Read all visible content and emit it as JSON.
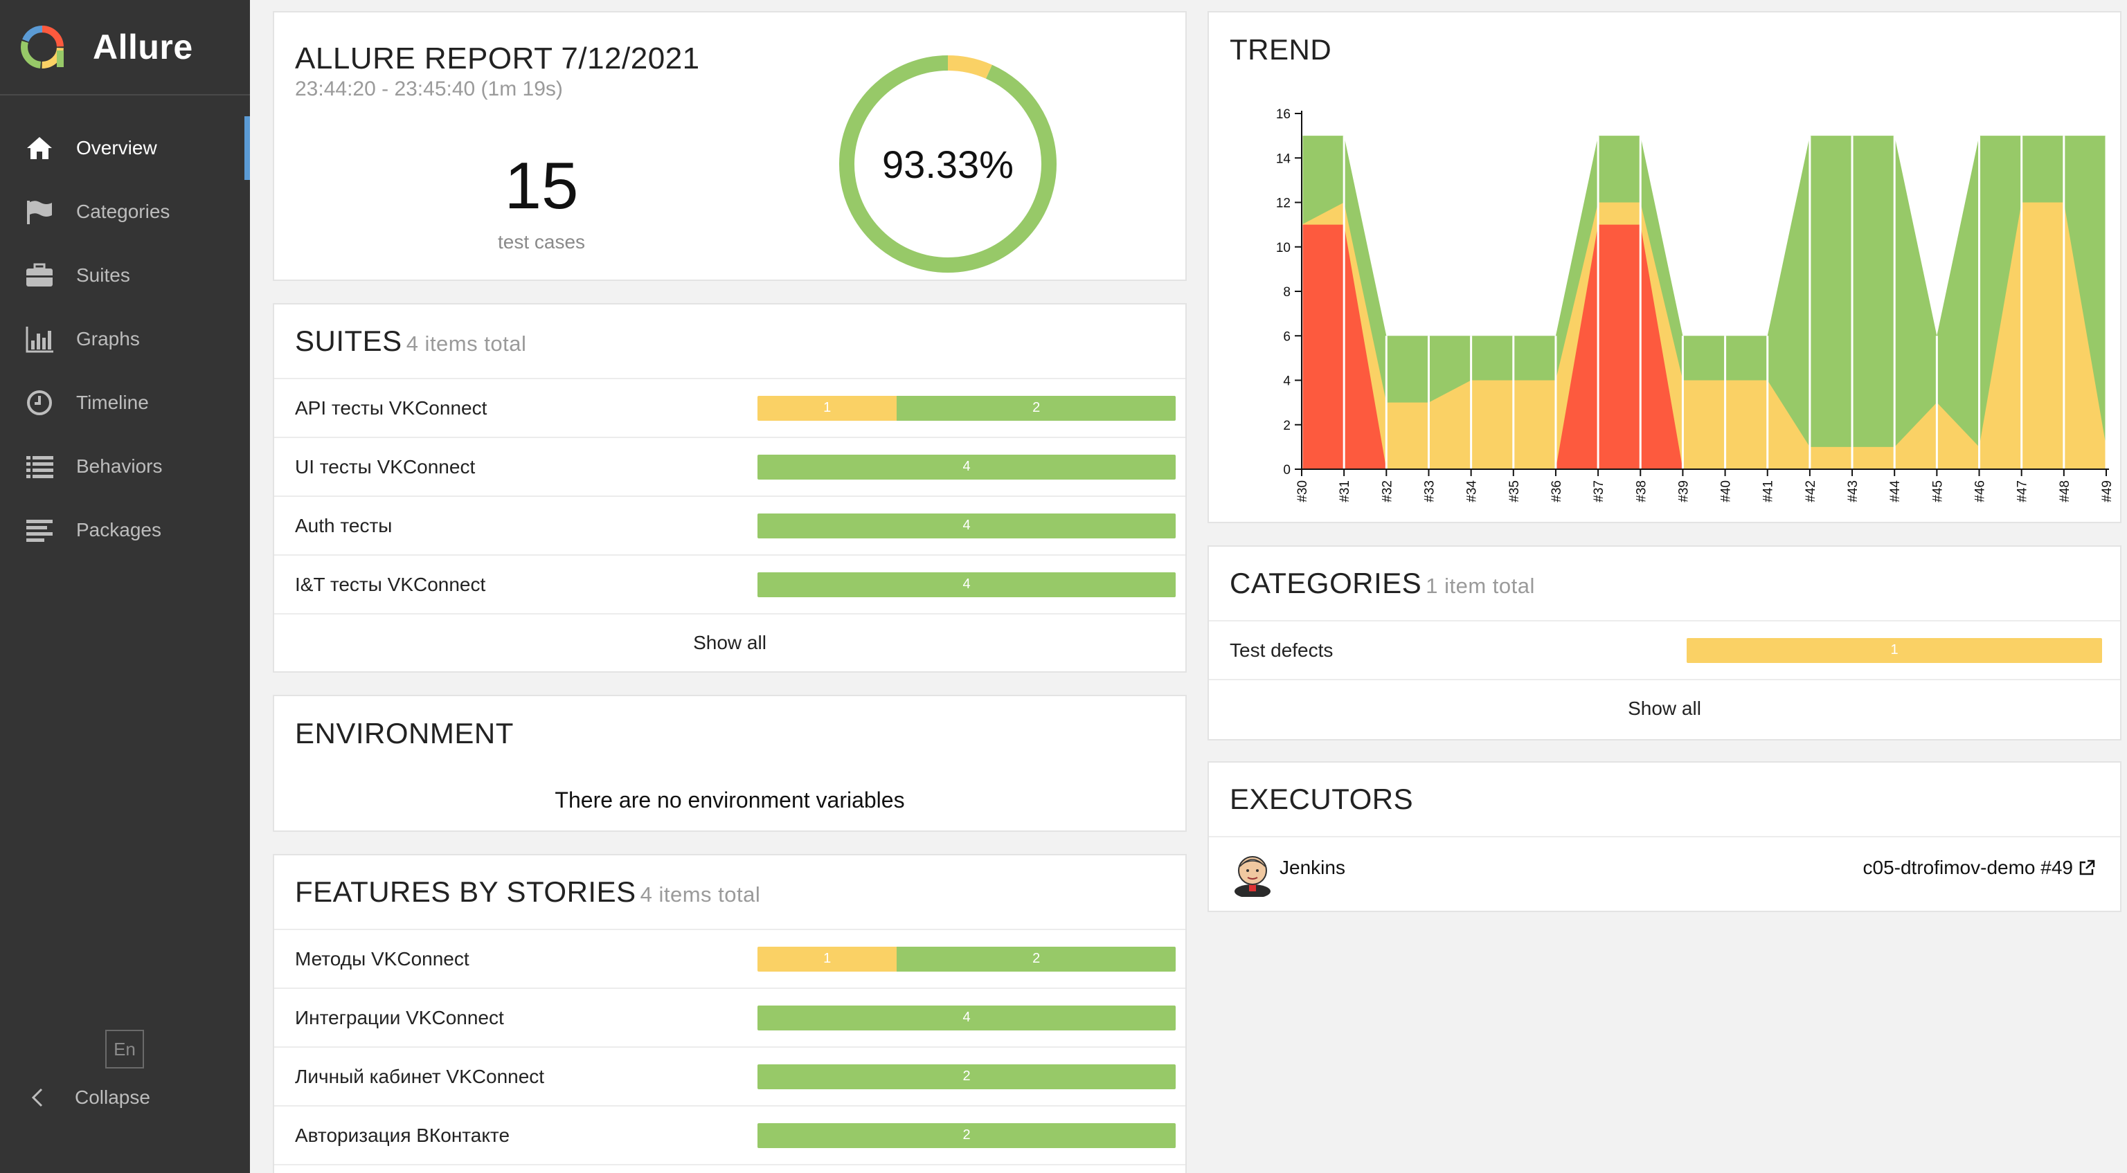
{
  "app": {
    "name": "Allure"
  },
  "nav": {
    "items": [
      {
        "label": "Overview",
        "icon": "home-icon"
      },
      {
        "label": "Categories",
        "icon": "flag-icon"
      },
      {
        "label": "Suites",
        "icon": "briefcase-icon"
      },
      {
        "label": "Graphs",
        "icon": "bar-chart-icon"
      },
      {
        "label": "Timeline",
        "icon": "clock-icon"
      },
      {
        "label": "Behaviors",
        "icon": "list-icon"
      },
      {
        "label": "Packages",
        "icon": "align-left-icon"
      }
    ],
    "language": "En",
    "collapse": "Collapse"
  },
  "summary": {
    "title": "ALLURE REPORT 7/12/2021",
    "time": "23:44:20 - 23:45:40 (1m 19s)",
    "count": "15",
    "count_label": "test cases",
    "percent": "93.33%",
    "passed_fraction": 0.9333,
    "broken_fraction": 0.0667
  },
  "colors": {
    "passed": "#97c968",
    "broken": "#fad165",
    "failed": "#fd5a3e",
    "accent": "#5b9bd5"
  },
  "suites": {
    "title": "SUITES",
    "subtitle": "4 items total",
    "items": [
      {
        "name": "API тесты VKConnect",
        "broken": "1",
        "passed": "2"
      },
      {
        "name": "UI тесты VKConnect",
        "broken": "",
        "passed": "4"
      },
      {
        "name": "Auth тесты",
        "broken": "",
        "passed": "4"
      },
      {
        "name": "I&T тесты VKConnect",
        "broken": "",
        "passed": "4"
      }
    ],
    "show_all": "Show all"
  },
  "environment": {
    "title": "ENVIRONMENT",
    "message": "There are no environment variables"
  },
  "features": {
    "title": "FEATURES BY STORIES",
    "subtitle": "4 items total",
    "items": [
      {
        "name": "Методы VKConnect",
        "broken": "1",
        "passed": "2"
      },
      {
        "name": "Интеграции VKConnect",
        "broken": "",
        "passed": "4"
      },
      {
        "name": "Личный кабинет VKConnect",
        "broken": "",
        "passed": "2"
      },
      {
        "name": "Авторизация ВКонтакте",
        "broken": "",
        "passed": "2"
      }
    ]
  },
  "trend": {
    "title": "TREND"
  },
  "categories": {
    "title": "CATEGORIES",
    "subtitle": "1 item total",
    "items": [
      {
        "name": "Test defects",
        "count": "1"
      }
    ],
    "show_all": "Show all"
  },
  "executors": {
    "title": "EXECUTORS",
    "items": [
      {
        "name": "Jenkins",
        "build": "c05-dtrofimov-demo #49"
      }
    ]
  },
  "chart_data": {
    "type": "area",
    "categories": [
      "#30",
      "#31",
      "#32",
      "#33",
      "#34",
      "#35",
      "#36",
      "#37",
      "#38",
      "#39",
      "#40",
      "#41",
      "#42",
      "#43",
      "#44",
      "#45",
      "#46",
      "#47",
      "#48",
      "#49"
    ],
    "yticks": [
      "0",
      "2",
      "4",
      "6",
      "8",
      "10",
      "12",
      "14",
      "16"
    ],
    "ylim": [
      0,
      16
    ],
    "series": [
      {
        "values": [
          11,
          11,
          0,
          0,
          0,
          0,
          0,
          11,
          11,
          0,
          0,
          0,
          0,
          0,
          0,
          0,
          0,
          0,
          0,
          0
        ]
      },
      {
        "values": [
          0,
          1,
          3,
          3,
          4,
          4,
          4,
          1,
          1,
          4,
          4,
          4,
          1,
          1,
          1,
          3,
          1,
          12,
          12,
          1
        ]
      },
      {
        "values": [
          4,
          3,
          3,
          3,
          2,
          2,
          2,
          3,
          3,
          2,
          2,
          2,
          14,
          14,
          14,
          3,
          14,
          3,
          3,
          14
        ]
      }
    ]
  }
}
